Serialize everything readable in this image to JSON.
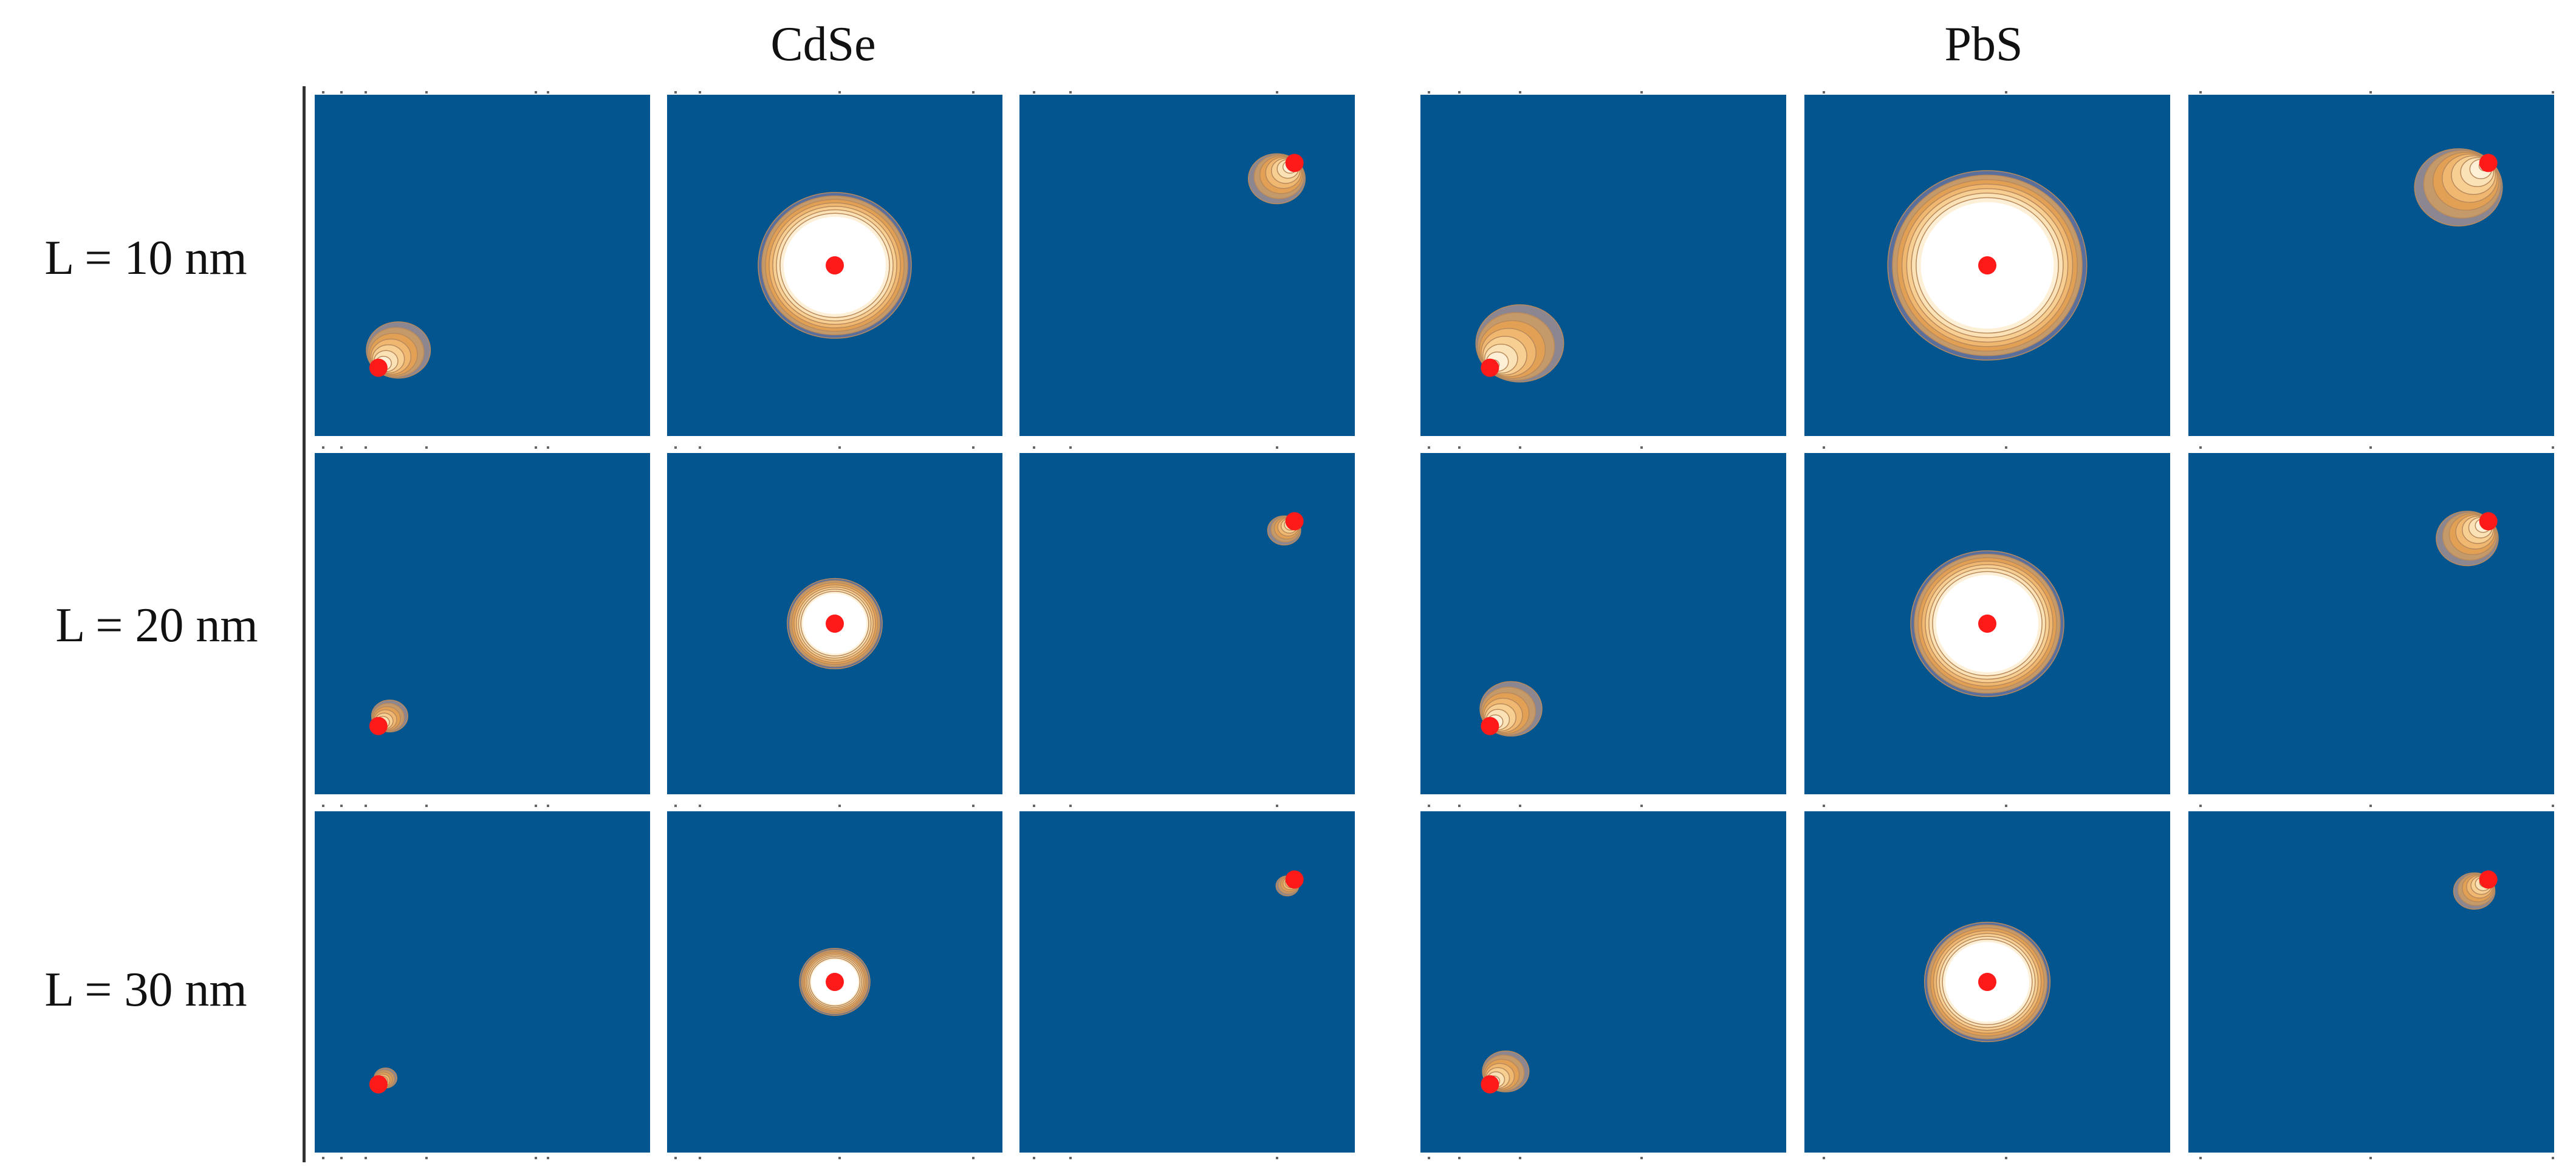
{
  "column_headers": [
    "CdSe",
    "PbS"
  ],
  "row_labels": [
    "L = 10 nm",
    "L = 20 nm",
    "L = 30 nm"
  ],
  "colors": {
    "background": "#03558f",
    "marker": "#ff1a1a",
    "contour_levels": [
      "#8c8690",
      "#c59a6a",
      "#e2a055",
      "#f0b771",
      "#f7cf93",
      "#fbe2b6",
      "#fdf0d6",
      "#ffffff"
    ]
  },
  "panels": [
    [
      {
        "material": "CdSe",
        "position": "bottom-left",
        "size": 0.62
      },
      {
        "material": "CdSe",
        "position": "center",
        "size": 1.0
      },
      {
        "material": "CdSe",
        "position": "top-right",
        "size": 0.55
      }
    ],
    [
      {
        "material": "CdSe",
        "position": "bottom-left",
        "size": 0.35
      },
      {
        "material": "CdSe",
        "position": "center",
        "size": 0.62
      },
      {
        "material": "CdSe",
        "position": "top-right",
        "size": 0.32
      }
    ],
    [
      {
        "material": "CdSe",
        "position": "bottom-left",
        "size": 0.22
      },
      {
        "material": "CdSe",
        "position": "center",
        "size": 0.46
      },
      {
        "material": "CdSe",
        "position": "top-right",
        "size": 0.22
      }
    ]
  ],
  "panels_pbs": [
    [
      {
        "material": "PbS",
        "position": "bottom-left",
        "size": 0.85
      },
      {
        "material": "PbS",
        "position": "center",
        "size": 1.3
      },
      {
        "material": "PbS",
        "position": "top-right",
        "size": 0.85
      }
    ],
    [
      {
        "material": "PbS",
        "position": "bottom-left",
        "size": 0.6
      },
      {
        "material": "PbS",
        "position": "center",
        "size": 1.0
      },
      {
        "material": "PbS",
        "position": "top-right",
        "size": 0.6
      }
    ],
    [
      {
        "material": "PbS",
        "position": "bottom-left",
        "size": 0.45
      },
      {
        "material": "PbS",
        "position": "center",
        "size": 0.82
      },
      {
        "material": "PbS",
        "position": "top-right",
        "size": 0.4
      }
    ]
  ]
}
